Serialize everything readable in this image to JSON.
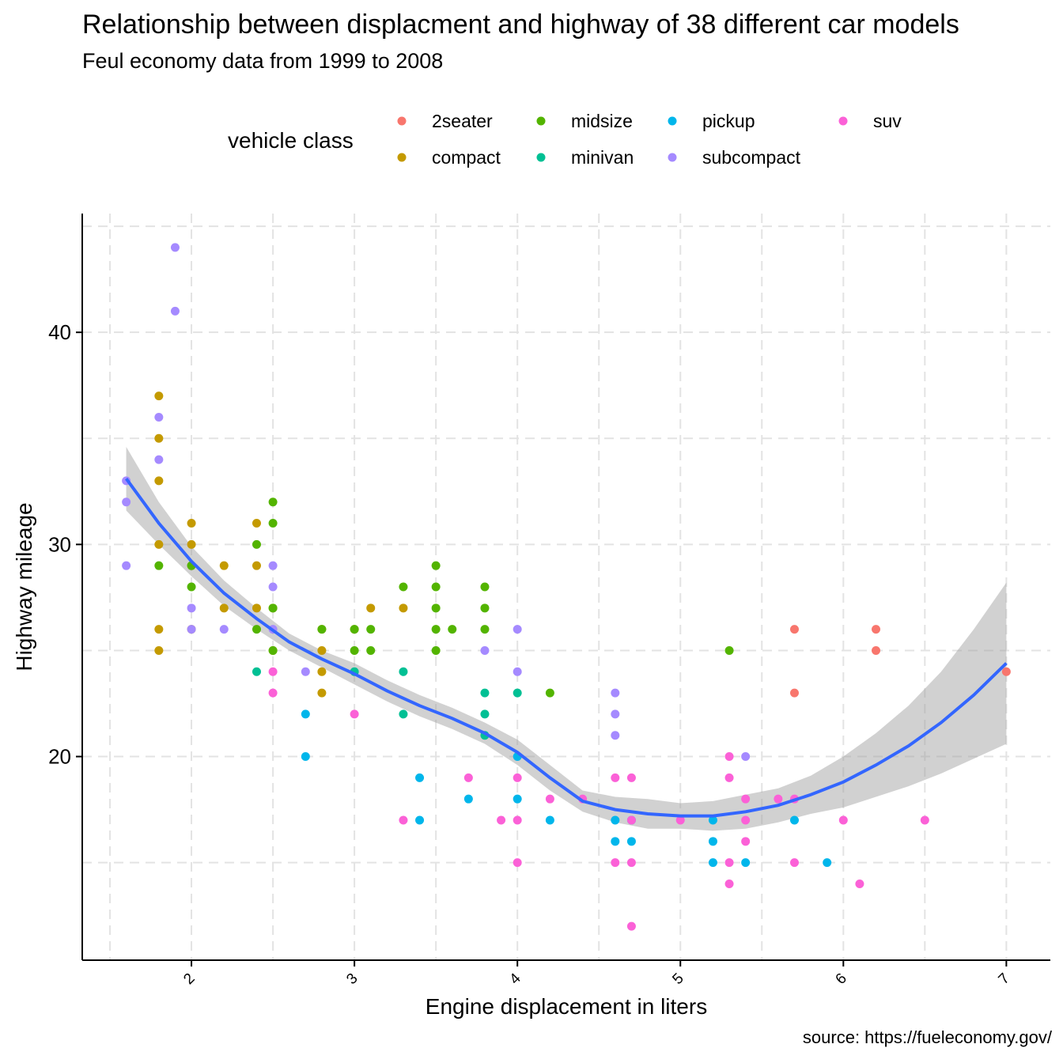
{
  "chart_data": {
    "type": "scatter",
    "title": "Relationship between displacment and highway of 38 different car models",
    "subtitle": "Feul economy data from 1999 to 2008",
    "caption": "source: https://fueleconomy.gov/",
    "xlabel": "Engine displacement in liters",
    "ylabel": "Highway mileage",
    "xlim": [
      1.33,
      7.27
    ],
    "ylim": [
      10.4,
      45.6
    ],
    "x_ticks": [
      2,
      3,
      4,
      5,
      6,
      7
    ],
    "y_ticks": [
      20,
      30,
      40
    ],
    "grid": "dashed major and minor",
    "legend": {
      "title": "vehicle class",
      "position": "top",
      "entries": [
        "2seater",
        "compact",
        "midsize",
        "minivan",
        "pickup",
        "subcompact",
        "suv"
      ]
    },
    "colors": {
      "2seater": "#F8766D",
      "compact": "#C49A00",
      "midsize": "#53B400",
      "minivan": "#00C094",
      "pickup": "#00B6EB",
      "subcompact": "#A58AFF",
      "suv": "#FB61D7",
      "smooth_line": "#3366FF",
      "ribbon": "#999999"
    },
    "series": [
      {
        "name": "2seater",
        "points": [
          [
            5.7,
            26
          ],
          [
            5.7,
            23
          ],
          [
            6.2,
            26
          ],
          [
            6.2,
            25
          ],
          [
            7.0,
            24
          ]
        ]
      },
      {
        "name": "compact",
        "points": [
          [
            1.8,
            37
          ],
          [
            1.8,
            35
          ],
          [
            1.8,
            33
          ],
          [
            1.8,
            30
          ],
          [
            1.8,
            26
          ],
          [
            1.8,
            25
          ],
          [
            2.0,
            31
          ],
          [
            2.0,
            30
          ],
          [
            2.0,
            29
          ],
          [
            2.0,
            26
          ],
          [
            2.2,
            29
          ],
          [
            2.2,
            27
          ],
          [
            2.4,
            31
          ],
          [
            2.4,
            29
          ],
          [
            2.4,
            27
          ],
          [
            2.5,
            27
          ],
          [
            2.5,
            25
          ],
          [
            2.8,
            26
          ],
          [
            2.8,
            25
          ],
          [
            2.8,
            24
          ],
          [
            2.8,
            23
          ],
          [
            3.0,
            26
          ],
          [
            3.1,
            27
          ],
          [
            3.3,
            27
          ]
        ]
      },
      {
        "name": "midsize",
        "points": [
          [
            1.8,
            29
          ],
          [
            2.0,
            29
          ],
          [
            2.0,
            28
          ],
          [
            2.4,
            30
          ],
          [
            2.4,
            26
          ],
          [
            2.5,
            32
          ],
          [
            2.5,
            31
          ],
          [
            2.5,
            27
          ],
          [
            2.5,
            25
          ],
          [
            2.8,
            26
          ],
          [
            3.0,
            26
          ],
          [
            3.0,
            25
          ],
          [
            3.1,
            26
          ],
          [
            3.1,
            25
          ],
          [
            3.3,
            28
          ],
          [
            3.5,
            29
          ],
          [
            3.5,
            28
          ],
          [
            3.5,
            27
          ],
          [
            3.5,
            26
          ],
          [
            3.5,
            25
          ],
          [
            3.6,
            26
          ],
          [
            3.8,
            28
          ],
          [
            3.8,
            27
          ],
          [
            3.8,
            26
          ],
          [
            4.2,
            23
          ],
          [
            5.3,
            25
          ]
        ]
      },
      {
        "name": "minivan",
        "points": [
          [
            2.4,
            24
          ],
          [
            3.0,
            24
          ],
          [
            3.3,
            24
          ],
          [
            3.3,
            22
          ],
          [
            3.8,
            23
          ],
          [
            3.8,
            22
          ],
          [
            3.8,
            21
          ],
          [
            4.0,
            23
          ]
        ]
      },
      {
        "name": "pickup",
        "points": [
          [
            2.7,
            22
          ],
          [
            2.7,
            20
          ],
          [
            3.4,
            19
          ],
          [
            3.4,
            17
          ],
          [
            3.7,
            18
          ],
          [
            4.0,
            20
          ],
          [
            4.0,
            18
          ],
          [
            4.2,
            17
          ],
          [
            4.6,
            17
          ],
          [
            4.6,
            16
          ],
          [
            4.7,
            17
          ],
          [
            4.7,
            16
          ],
          [
            5.2,
            17
          ],
          [
            5.2,
            16
          ],
          [
            5.2,
            15
          ],
          [
            5.4,
            15
          ],
          [
            5.7,
            17
          ],
          [
            5.9,
            15
          ]
        ]
      },
      {
        "name": "subcompact",
        "points": [
          [
            1.6,
            33
          ],
          [
            1.6,
            32
          ],
          [
            1.6,
            29
          ],
          [
            1.9,
            44
          ],
          [
            1.9,
            41
          ],
          [
            1.8,
            36
          ],
          [
            1.8,
            34
          ],
          [
            2.0,
            27
          ],
          [
            2.0,
            26
          ],
          [
            2.2,
            26
          ],
          [
            2.5,
            29
          ],
          [
            2.5,
            28
          ],
          [
            2.5,
            26
          ],
          [
            2.7,
            24
          ],
          [
            3.8,
            25
          ],
          [
            4.0,
            26
          ],
          [
            4.0,
            24
          ],
          [
            4.6,
            23
          ],
          [
            4.6,
            22
          ],
          [
            4.6,
            21
          ],
          [
            5.4,
            20
          ]
        ]
      },
      {
        "name": "suv",
        "points": [
          [
            2.5,
            24
          ],
          [
            2.5,
            23
          ],
          [
            3.0,
            22
          ],
          [
            3.3,
            17
          ],
          [
            3.7,
            19
          ],
          [
            3.9,
            17
          ],
          [
            4.0,
            19
          ],
          [
            4.0,
            17
          ],
          [
            4.0,
            15
          ],
          [
            4.2,
            18
          ],
          [
            4.4,
            18
          ],
          [
            4.6,
            19
          ],
          [
            4.6,
            15
          ],
          [
            4.7,
            19
          ],
          [
            4.7,
            17
          ],
          [
            4.7,
            15
          ],
          [
            4.7,
            12
          ],
          [
            5.0,
            17
          ],
          [
            5.3,
            20
          ],
          [
            5.3,
            19
          ],
          [
            5.3,
            15
          ],
          [
            5.3,
            14
          ],
          [
            5.4,
            18
          ],
          [
            5.4,
            17
          ],
          [
            5.4,
            16
          ],
          [
            5.6,
            18
          ],
          [
            5.7,
            18
          ],
          [
            5.7,
            15
          ],
          [
            6.0,
            17
          ],
          [
            6.1,
            14
          ],
          [
            6.5,
            17
          ]
        ]
      }
    ],
    "smooth": {
      "method": "loess",
      "x": [
        1.6,
        1.8,
        2.0,
        2.2,
        2.4,
        2.6,
        2.8,
        3.0,
        3.2,
        3.4,
        3.6,
        3.8,
        4.0,
        4.2,
        4.4,
        4.6,
        4.8,
        5.0,
        5.2,
        5.4,
        5.6,
        5.8,
        6.0,
        6.2,
        6.4,
        6.6,
        6.8,
        7.0
      ],
      "y": [
        33.1,
        31.0,
        29.2,
        27.7,
        26.5,
        25.4,
        24.6,
        23.9,
        23.1,
        22.4,
        21.8,
        21.1,
        20.2,
        19.0,
        17.9,
        17.5,
        17.3,
        17.2,
        17.2,
        17.4,
        17.7,
        18.2,
        18.8,
        19.6,
        20.5,
        21.6,
        22.9,
        24.4
      ],
      "lower": [
        31.6,
        30.0,
        28.5,
        27.1,
        26.0,
        25.0,
        24.2,
        23.4,
        22.6,
        21.9,
        21.3,
        20.6,
        19.6,
        18.4,
        17.4,
        16.9,
        16.6,
        16.6,
        16.5,
        16.6,
        16.9,
        17.3,
        17.6,
        18.1,
        18.6,
        19.2,
        19.9,
        20.6
      ],
      "upper": [
        34.6,
        32.0,
        29.9,
        28.3,
        27.0,
        25.8,
        25.0,
        24.4,
        23.6,
        22.9,
        22.3,
        21.6,
        20.8,
        19.6,
        18.4,
        18.1,
        18.0,
        17.8,
        17.9,
        18.2,
        18.5,
        19.1,
        20.0,
        21.1,
        22.4,
        24.0,
        26.0,
        28.2
      ]
    }
  }
}
